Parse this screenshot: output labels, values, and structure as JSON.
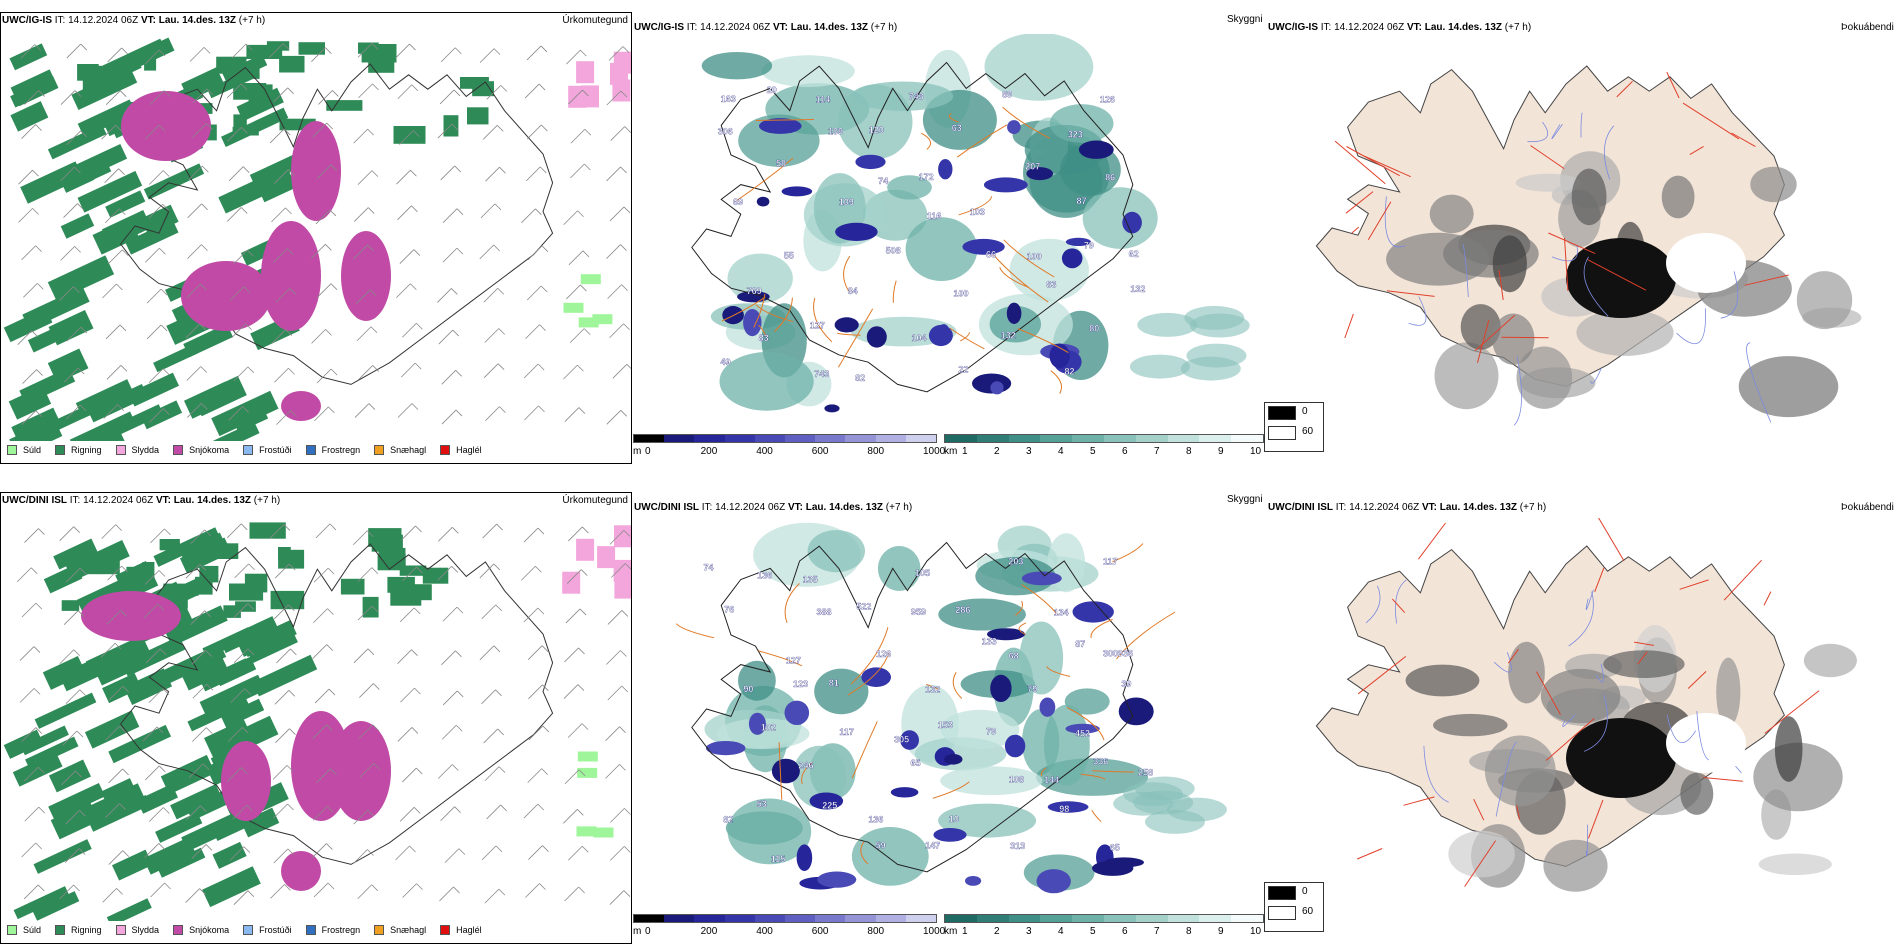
{
  "rows": [
    {
      "precip": {
        "model": "UWC/IG-IS",
        "it_label": "IT:",
        "it_value": "14.12.2024 06Z",
        "vt_label": "VT:",
        "vt_value": "Lau. 14.des. 13Z",
        "lead": "(+7 h)",
        "product": "Úrkomutegund"
      },
      "cloud": {
        "model": "UWC/IG-IS",
        "it_label": "IT:",
        "it_value": "14.12.2024 06Z",
        "vt_label": "VT:",
        "vt_value": "Lau. 14.des. 13Z",
        "lead": "(+7 h)",
        "product": "Skyggni",
        "labels": [
          "163",
          "114",
          "743",
          "89",
          "126",
          "20",
          "120",
          "63",
          "323",
          "306",
          "109",
          "172",
          "207",
          "86",
          "58",
          "74",
          "103",
          "87",
          "69",
          "109",
          "116",
          "100",
          "62",
          "55",
          "508",
          "66",
          "79",
          "769",
          "84",
          "100",
          "83",
          "132",
          "127",
          "104",
          "132",
          "80",
          "83",
          "82",
          "22",
          "82",
          "49",
          "743"
        ]
      },
      "fog": {
        "model": "UWC/IG-IS",
        "it_label": "IT:",
        "it_value": "14.12.2024 06Z",
        "vt_label": "VT:",
        "vt_value": "Lau. 14.des. 13Z",
        "lead": "(+7 h)",
        "product": "Þokuábendi"
      }
    },
    {
      "precip": {
        "model": "UWC/DINI ISL",
        "it_label": "IT:",
        "it_value": "14.12.2024 06Z",
        "vt_label": "VT:",
        "vt_value": "Lau. 14.des. 13Z",
        "lead": "(+7 h)",
        "product": "Úrkomutegund"
      },
      "cloud": {
        "model": "UWC/DINI ISL",
        "it_label": "IT:",
        "it_value": "14.12.2024 06Z",
        "vt_label": "VT:",
        "vt_value": "Lau. 14.des. 13Z",
        "lead": "(+7 h)",
        "product": "Skyggni",
        "labels": [
          "74",
          "135",
          "105",
          "203",
          "117",
          "136",
          "522",
          "286",
          "134",
          "76",
          "388",
          "959",
          "68",
          "300936",
          "127",
          "126",
          "133",
          "87",
          "90",
          "81",
          "132",
          "79",
          "39",
          "123",
          "305",
          "79",
          "452",
          "102",
          "117",
          "153",
          "144",
          "258",
          "246",
          "65",
          "108",
          "336",
          "53",
          "136",
          "10",
          "98",
          "82",
          "225",
          "147",
          "313",
          "65",
          "115",
          "59"
        ]
      },
      "fog": {
        "model": "UWC/DINI ISL",
        "it_label": "IT:",
        "it_value": "14.12.2024 06Z",
        "vt_label": "VT:",
        "vt_value": "Lau. 14.des. 13Z",
        "lead": "(+7 h)",
        "product": "Þokuábendi"
      }
    }
  ],
  "legend_precip": [
    {
      "label": "Súld",
      "color": "#9ef59a"
    },
    {
      "label": "Rigning",
      "color": "#2e8b57"
    },
    {
      "label": "Slydda",
      "color": "#f3a6dc"
    },
    {
      "label": "Snjókoma",
      "color": "#c04aa6"
    },
    {
      "label": "Frostúði",
      "color": "#8ab8f0"
    },
    {
      "label": "Frostregn",
      "color": "#2f6fbf"
    },
    {
      "label": "Snæhagl",
      "color": "#f0a020"
    },
    {
      "label": "Haglél",
      "color": "#e01010"
    }
  ],
  "cloudbase_bar": {
    "unit": "m",
    "ticks": [
      "0",
      "200",
      "400",
      "600",
      "800",
      "1000"
    ],
    "colors": [
      "#000000",
      "#1a1a7a",
      "#26269a",
      "#3535aa",
      "#4a4ab6",
      "#5f5fc2",
      "#7878cc",
      "#9494d6",
      "#b0b0e2",
      "#cfcfee"
    ]
  },
  "visibility_bar": {
    "unit": "km",
    "ticks": [
      "1",
      "2",
      "3",
      "4",
      "5",
      "6",
      "7",
      "8",
      "9",
      "10"
    ],
    "colors": [
      "#1f6b63",
      "#2f7d74",
      "#3f8f86",
      "#55a097",
      "#6db1a8",
      "#88c2ba",
      "#a4d2cb",
      "#c0e1dc",
      "#dbefec",
      "#f4fbfa"
    ]
  },
  "fog_legend": [
    {
      "label": "0",
      "color": "#000000"
    },
    {
      "label": "60",
      "color": "#ffffff"
    }
  ],
  "colors": {
    "roads": "#e07a28",
    "fog_land": "#f3e4d8",
    "fog_roads": "#e0402a",
    "rivers": "#7a8ae0"
  }
}
